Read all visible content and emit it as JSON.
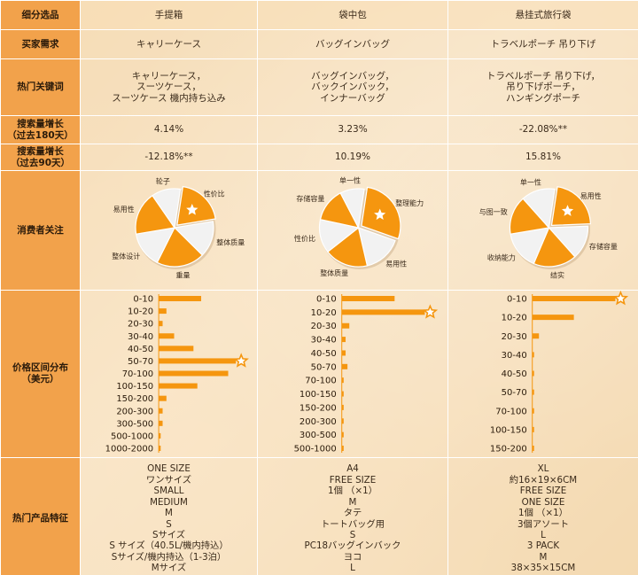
{
  "header": {
    "label": "细分选品",
    "columns": [
      "手提箱",
      "袋中包",
      "悬挂式旅行袋"
    ]
  },
  "rows": {
    "buyer_need": {
      "label": "买家需求",
      "values": [
        "キャリーケース",
        "バッグインバッグ",
        "トラベルポーチ 吊り下げ"
      ]
    },
    "keywords": {
      "label": "热门关键词",
      "values": [
        [
          "キャリーケース，",
          "スーツケース，",
          "スーツケース 機内持ち込み"
        ],
        [
          "バッグインバッグ，",
          "バックインバック，",
          "インナーバッグ"
        ],
        [
          "トラベルポーチ 吊り下げ，",
          "吊り下げポーチ，",
          "ハンギングポーチ"
        ]
      ]
    },
    "growth_180": {
      "label_line1": "搜索量增长",
      "label_line2": "（过去180天）",
      "values": [
        "4.14%",
        "3.23%",
        "-22.08%**"
      ]
    },
    "growth_90": {
      "label_line1": "搜索量增长",
      "label_line2": "（过去90天）",
      "values": [
        "-12.18%**",
        "10.19%",
        "15.81%"
      ]
    },
    "concerns": {
      "label": "消费者关注",
      "pies": [
        {
          "slices": [
            {
              "label": "性价比",
              "value": 20,
              "color": "#f5960f",
              "star": true
            },
            {
              "label": "整体质量",
              "value": 15,
              "color": "#f2f2f2"
            },
            {
              "label": "重量",
              "value": 20,
              "color": "#f5960f"
            },
            {
              "label": "整体设计",
              "value": 15,
              "color": "#f2f2f2"
            },
            {
              "label": "易用性",
              "value": 18,
              "color": "#f5960f"
            },
            {
              "label": "轮子",
              "value": 12,
              "color": "#f2f2f2"
            }
          ]
        },
        {
          "slices": [
            {
              "label": "整理能力",
              "value": 28,
              "color": "#f5960f",
              "star": true
            },
            {
              "label": "易用性",
              "value": 16,
              "color": "#f2f2f2"
            },
            {
              "label": "整体质量",
              "value": 18,
              "color": "#f5960f"
            },
            {
              "label": "性价比",
              "value": 14,
              "color": "#f2f2f2"
            },
            {
              "label": "存储容量",
              "value": 14,
              "color": "#f5960f"
            },
            {
              "label": "单一性",
              "value": 10,
              "color": "#f2f2f2"
            }
          ]
        },
        {
          "slices": [
            {
              "label": "易用性",
              "value": 22,
              "color": "#f5960f",
              "star": true
            },
            {
              "label": "存储容量",
              "value": 14,
              "color": "#f2f2f2"
            },
            {
              "label": "结实",
              "value": 18,
              "color": "#f5960f"
            },
            {
              "label": "收纳能力",
              "value": 16,
              "color": "#f2f2f2"
            },
            {
              "label": "与图一致",
              "value": 16,
              "color": "#f5960f"
            },
            {
              "label": "单一性",
              "value": 14,
              "color": "#f2f2f2"
            }
          ]
        }
      ]
    },
    "price": {
      "label_line1": "价格区间分布",
      "label_line2": "（美元）"
    },
    "features": {
      "label": "热门产品特征",
      "values": [
        [
          "ONE SIZE",
          "ワンサイズ",
          "SMALL",
          "MEDIUM",
          "M",
          "S",
          "Sサイズ",
          "S サイズ（40.5L/機内持込）",
          "Sサイズ/機内持込（1-3泊）",
          "Mサイズ"
        ],
        [
          "A4",
          "FREE SIZE",
          "1個 （×1）",
          "M",
          "タテ",
          "トートバッグ用",
          "S",
          "PC18バッグインバック",
          "ヨコ",
          "L"
        ],
        [
          "XL",
          "約16×19×6CM",
          "FREE SIZE",
          "ONE SIZE",
          "1個 （×1）",
          "3個アソート",
          "L",
          "3 PACK",
          "M",
          "38×35×15CM"
        ]
      ]
    }
  },
  "chart_data": [
    {
      "type": "pie",
      "categories": [
        "性价比",
        "整体质量",
        "重量",
        "整体设计",
        "易用性",
        "轮子"
      ],
      "values": [
        20,
        15,
        20,
        15,
        18,
        12
      ]
    },
    {
      "type": "pie",
      "categories": [
        "整理能力",
        "易用性",
        "整体质量",
        "性价比",
        "存储容量",
        "单一性"
      ],
      "values": [
        28,
        16,
        18,
        14,
        14,
        10
      ]
    },
    {
      "type": "pie",
      "categories": [
        "易用性",
        "存储容量",
        "结实",
        "收纳能力",
        "与图一致",
        "单一性"
      ],
      "values": [
        22,
        14,
        18,
        16,
        16,
        14
      ]
    },
    {
      "type": "bar",
      "orientation": "horizontal",
      "categories": [
        "0-10",
        "10-20",
        "20-30",
        "30-40",
        "40-50",
        "50-70",
        "70-100",
        "100-150",
        "150-200",
        "200-300",
        "300-500",
        "500-1000",
        "1000-2000"
      ],
      "values": [
        11,
        2,
        1,
        4,
        9,
        20,
        18,
        10,
        2,
        1,
        1,
        0.5,
        0.5
      ],
      "star_index": 5
    },
    {
      "type": "bar",
      "orientation": "horizontal",
      "categories": [
        "0-10",
        "10-20",
        "20-30",
        "30-40",
        "40-50",
        "50-70",
        "70-100",
        "100-150",
        "150-200",
        "200-300",
        "300-500",
        "500-1000"
      ],
      "values": [
        14,
        22,
        2,
        1,
        1,
        1.5,
        0.5,
        0.5,
        0.5,
        0.5,
        0.5,
        0.5
      ],
      "star_index": 1
    },
    {
      "type": "bar",
      "orientation": "horizontal",
      "categories": [
        "0-10",
        "10-20",
        "20-30",
        "30-40",
        "40-50",
        "50-70",
        "70-100",
        "100-150",
        "150-200"
      ],
      "values": [
        25,
        12.5,
        2,
        0.5,
        0.5,
        0.5,
        0.5,
        0.5,
        0.5
      ],
      "star_index": 0
    }
  ]
}
